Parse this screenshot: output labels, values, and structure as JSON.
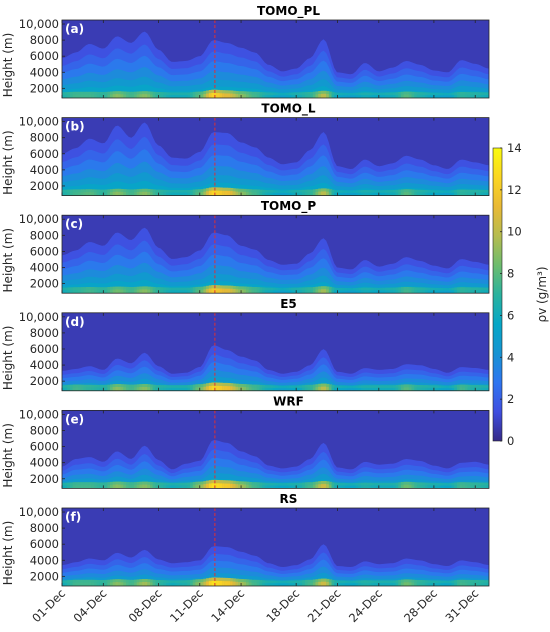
{
  "chart_data": {
    "type": "heatmap",
    "y_ticks": [
      2000,
      4000,
      6000,
      8000,
      10000
    ],
    "y_tick_labels": [
      "2000",
      "4000",
      "6000",
      "8000",
      "10,000"
    ],
    "y_range": [
      800,
      10500
    ],
    "ylabel": "Height (m)",
    "x_day_range": [
      0,
      31
    ],
    "x_ticks": [
      0,
      3,
      7,
      10,
      13,
      17,
      20,
      23,
      27,
      30
    ],
    "x_tick_labels": [
      "01-Dec",
      "04-Dec",
      "08-Dec",
      "11-Dec",
      "14-Dec",
      "18-Dec",
      "21-Dec",
      "24-Dec",
      "28-Dec",
      "31-Dec"
    ],
    "event_marker_day": 11.1,
    "panels": [
      {
        "id": "a",
        "label": "(a)",
        "title": "TOMO_PL",
        "mid_heights": [
          5.0,
          5.6,
          6.5,
          6.0,
          7.3,
          6.6,
          7.8,
          5.9,
          4.6,
          4.7,
          5.2,
          6.9,
          6.6,
          6.1,
          5.6,
          4.3,
          3.6,
          3.9,
          5.0,
          7.0,
          3.5,
          3.3,
          4.5,
          3.6,
          4.0,
          4.7,
          4.3,
          3.7,
          3.5,
          4.8,
          4.4,
          3.9
        ],
        "surface_vapor": [
          6.5,
          7.5,
          7.5,
          7.0,
          9.0,
          7.5,
          9.0,
          7.0,
          6.0,
          6.0,
          8.0,
          12.5,
          11.0,
          9.0,
          7.5,
          6.0,
          5.0,
          6.0,
          7.0,
          10.0,
          5.5,
          5.0,
          6.0,
          5.5,
          6.0,
          8.0,
          6.5,
          5.5,
          5.0,
          7.0,
          6.5,
          6.0
        ]
      },
      {
        "id": "b",
        "label": "(b)",
        "title": "TOMO_L",
        "mid_heights": [
          5.2,
          5.8,
          6.8,
          6.3,
          8.2,
          6.9,
          8.5,
          6.1,
          4.8,
          4.7,
          5.4,
          7.5,
          7.4,
          6.4,
          5.9,
          4.8,
          4.1,
          4.3,
          5.6,
          7.5,
          3.9,
          3.6,
          4.6,
          3.9,
          4.2,
          5.0,
          4.6,
          4.0,
          3.6,
          4.6,
          4.3,
          4.0
        ],
        "surface_vapor": [
          6.5,
          7.5,
          8.0,
          7.0,
          9.0,
          7.5,
          9.0,
          7.0,
          6.0,
          6.0,
          8.0,
          12.5,
          11.5,
          9.0,
          7.5,
          6.0,
          5.0,
          6.0,
          7.0,
          10.0,
          5.5,
          5.0,
          6.0,
          5.5,
          6.0,
          8.0,
          6.5,
          5.5,
          5.0,
          7.0,
          6.5,
          6.0
        ]
      },
      {
        "id": "c",
        "label": "(c)",
        "title": "TOMO_P",
        "mid_heights": [
          4.8,
          5.3,
          6.2,
          5.8,
          7.2,
          6.4,
          7.7,
          5.6,
          4.4,
          4.6,
          5.3,
          7.2,
          6.9,
          5.8,
          5.4,
          4.3,
          3.8,
          3.9,
          5.0,
          6.6,
          3.5,
          3.3,
          4.3,
          3.6,
          3.9,
          4.6,
          4.2,
          3.7,
          3.4,
          4.4,
          4.1,
          3.8
        ],
        "surface_vapor": [
          6.0,
          7.0,
          7.5,
          7.0,
          8.5,
          7.5,
          9.0,
          7.0,
          6.0,
          6.0,
          8.0,
          12.0,
          11.0,
          9.0,
          7.5,
          6.0,
          5.0,
          6.0,
          7.0,
          9.5,
          5.5,
          5.0,
          6.0,
          5.5,
          6.0,
          7.5,
          6.5,
          5.5,
          5.0,
          7.0,
          6.5,
          6.0
        ]
      },
      {
        "id": "d",
        "label": "(d)",
        "title": "E5",
        "mid_heights": [
          2.9,
          3.1,
          3.4,
          3.0,
          4.2,
          3.7,
          4.8,
          3.4,
          2.6,
          2.7,
          3.3,
          5.6,
          5.1,
          4.4,
          4.0,
          3.0,
          2.6,
          2.8,
          3.5,
          5.2,
          2.8,
          2.6,
          3.2,
          3.0,
          3.1,
          3.6,
          3.5,
          3.1,
          2.7,
          3.3,
          3.2,
          3.0
        ],
        "surface_vapor": [
          6.0,
          7.5,
          7.0,
          6.5,
          9.0,
          7.5,
          9.0,
          6.5,
          6.0,
          6.0,
          8.5,
          12.5,
          11.5,
          9.0,
          7.5,
          6.0,
          5.0,
          5.5,
          7.0,
          10.0,
          5.5,
          5.0,
          6.0,
          6.0,
          6.0,
          8.0,
          6.5,
          6.0,
          5.0,
          7.5,
          6.5,
          6.0
        ]
      },
      {
        "id": "e",
        "label": "(e)",
        "title": "WRF",
        "mid_heights": [
          3.1,
          3.9,
          4.1,
          3.6,
          4.7,
          3.9,
          5.3,
          3.8,
          2.8,
          3.4,
          3.7,
          5.9,
          5.6,
          4.7,
          4.2,
          3.2,
          2.9,
          3.1,
          3.9,
          5.6,
          3.0,
          2.8,
          3.6,
          3.3,
          3.4,
          3.9,
          3.7,
          3.2,
          2.9,
          3.5,
          3.6,
          3.3
        ],
        "surface_vapor": [
          6.0,
          7.5,
          7.5,
          7.0,
          9.0,
          7.5,
          9.0,
          7.0,
          6.0,
          6.5,
          9.0,
          13.0,
          12.0,
          9.5,
          7.5,
          6.0,
          5.5,
          6.0,
          7.5,
          10.5,
          6.0,
          5.5,
          6.5,
          6.0,
          6.0,
          8.5,
          7.0,
          6.0,
          5.5,
          7.5,
          7.0,
          6.5
        ]
      },
      {
        "id": "f",
        "label": "(f)",
        "title": "RS",
        "mid_heights": [
          3.0,
          3.3,
          3.7,
          3.5,
          4.3,
          3.8,
          4.6,
          3.6,
          3.2,
          3.3,
          3.5,
          5.0,
          4.9,
          4.4,
          4.0,
          3.2,
          2.8,
          3.0,
          3.6,
          5.2,
          2.9,
          2.8,
          3.4,
          3.1,
          3.2,
          3.7,
          3.5,
          3.1,
          2.9,
          3.5,
          3.3,
          3.0
        ],
        "surface_vapor": [
          6.0,
          7.5,
          7.5,
          7.0,
          9.0,
          7.5,
          9.5,
          7.0,
          6.0,
          6.5,
          9.0,
          13.0,
          12.0,
          9.5,
          7.5,
          6.0,
          5.5,
          6.0,
          7.5,
          10.5,
          6.0,
          5.5,
          6.5,
          6.0,
          6.0,
          8.5,
          7.0,
          6.0,
          5.5,
          7.5,
          7.0,
          6.5
        ]
      }
    ],
    "colorbar": {
      "min": 0,
      "max": 14,
      "ticks": [
        0,
        2,
        4,
        6,
        8,
        10,
        12,
        14
      ],
      "tick_labels": [
        "0",
        "2",
        "4",
        "6",
        "8",
        "10",
        "12",
        "14"
      ],
      "label": "ρv (g/m³)",
      "colormap": "parula",
      "colors": [
        "#352a87",
        "#3f4ee0",
        "#2e75f0",
        "#1694d2",
        "#06a7c6",
        "#2ab29e",
        "#6dbc6e",
        "#b5bc4f",
        "#e9b935",
        "#fbd622",
        "#f9fb0e"
      ]
    },
    "colors": {
      "axis": "#262626",
      "marker": "#e03030",
      "panel_label": "#ffffff"
    }
  }
}
